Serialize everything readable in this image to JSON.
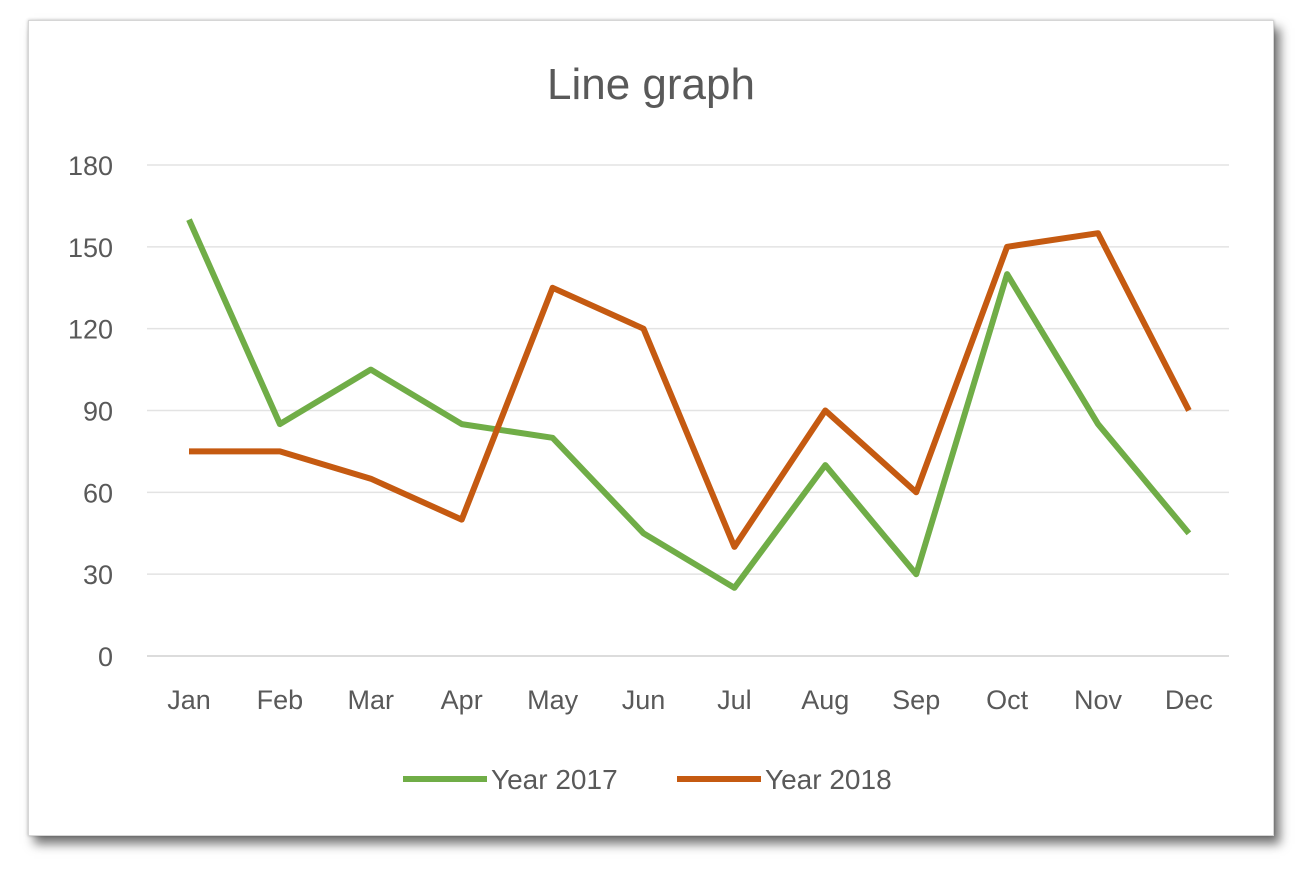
{
  "chart_data": {
    "type": "line",
    "title": "Line graph",
    "categories": [
      "Jan",
      "Feb",
      "Mar",
      "Apr",
      "May",
      "Jun",
      "Jul",
      "Aug",
      "Sep",
      "Oct",
      "Nov",
      "Dec"
    ],
    "yticks": [
      0,
      30,
      60,
      90,
      120,
      150,
      180
    ],
    "ylim": [
      0,
      180
    ],
    "grid": true,
    "legend_position": "bottom",
    "series": [
      {
        "name": "Year 2017",
        "color": "#70ad47",
        "values": [
          160,
          85,
          105,
          85,
          80,
          45,
          25,
          70,
          30,
          140,
          85,
          45
        ]
      },
      {
        "name": "Year 2018",
        "color": "#c55a11",
        "values": [
          75,
          75,
          65,
          50,
          135,
          120,
          40,
          90,
          60,
          150,
          155,
          90
        ]
      }
    ]
  }
}
